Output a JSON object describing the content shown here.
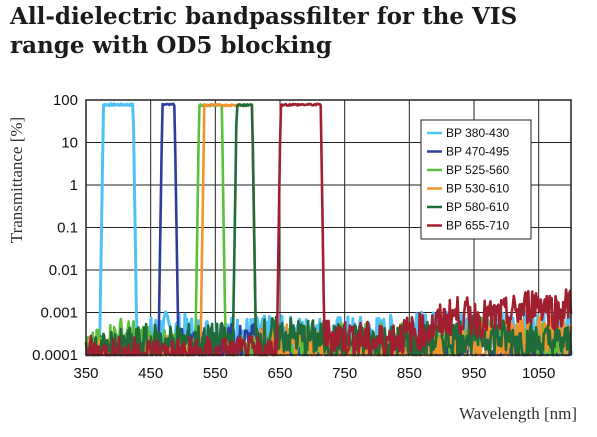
{
  "chart_data": {
    "type": "line",
    "title": "All-dielectric bandpassfilter for the VIS range with OD5 blocking",
    "xlabel": "Wavelength [nm]",
    "ylabel": "Transmittance [%]",
    "xlim": [
      350,
      1100
    ],
    "ylim": [
      0.0001,
      100
    ],
    "yscale": "log",
    "grid": true,
    "legend_position": "top-right",
    "x_ticks": [
      "350",
      "450",
      "550",
      "650",
      "750",
      "850",
      "950",
      "1050"
    ],
    "y_ticks": [
      "100",
      "10",
      "1",
      "0.1",
      "0.01",
      "0.001",
      "0.0001"
    ],
    "series": [
      {
        "name": "BP 380-430",
        "color": "#4fc3f7",
        "band": [
          372,
          428
        ],
        "peak": 80,
        "noise": [
          [
            350,
            0.0001
          ],
          [
            430,
            0.0002
          ],
          [
            470,
            0.0004
          ],
          [
            520,
            0.0003
          ],
          [
            600,
            0.0003
          ],
          [
            700,
            0.0003
          ],
          [
            800,
            0.0003
          ],
          [
            900,
            0.0004
          ],
          [
            1000,
            0.0004
          ],
          [
            1100,
            0.0004
          ]
        ]
      },
      {
        "name": "BP 470-495",
        "color": "#2e3d9c",
        "band": [
          463,
          492
        ],
        "peak": 80,
        "noise": [
          [
            350,
            0.0001
          ],
          [
            450,
            0.0001
          ],
          [
            500,
            0.00015
          ],
          [
            560,
            0.0002
          ],
          [
            620,
            0.0002
          ],
          [
            700,
            0.0001
          ],
          [
            800,
            0.0001
          ],
          [
            900,
            0.0001
          ],
          [
            1000,
            0.0001
          ],
          [
            1100,
            0.0001
          ]
        ]
      },
      {
        "name": "BP 525-560",
        "color": "#5cbf3c",
        "band": [
          520,
          565
        ],
        "peak": 78,
        "noise": [
          [
            350,
            0.0001
          ],
          [
            400,
            0.0003
          ],
          [
            440,
            0.0002
          ],
          [
            500,
            0.0001
          ],
          [
            600,
            0.0001
          ],
          [
            700,
            0.0002
          ],
          [
            800,
            0.0002
          ],
          [
            880,
            0.0002
          ],
          [
            950,
            0.0003
          ],
          [
            1050,
            0.0002
          ],
          [
            1100,
            0.0002
          ]
        ]
      },
      {
        "name": "BP 530-610",
        "color": "#f4922c",
        "band": [
          528,
          612
        ],
        "peak": 78,
        "noise": [
          [
            350,
            0.0001
          ],
          [
            430,
            0.0001
          ],
          [
            500,
            0.0001
          ],
          [
            620,
            0.0002
          ],
          [
            700,
            0.0002
          ],
          [
            760,
            0.0001
          ],
          [
            850,
            0.0001
          ],
          [
            950,
            0.0002
          ],
          [
            1050,
            0.0003
          ],
          [
            1100,
            0.0003
          ]
        ]
      },
      {
        "name": "BP 580-610",
        "color": "#1f6b3a",
        "band": [
          578,
          612
        ],
        "peak": 78,
        "noise": [
          [
            350,
            0.0001
          ],
          [
            450,
            0.0002
          ],
          [
            550,
            0.0002
          ],
          [
            650,
            0.0003
          ],
          [
            750,
            0.0002
          ],
          [
            850,
            0.0002
          ],
          [
            950,
            0.0003
          ],
          [
            1050,
            0.0002
          ],
          [
            1100,
            0.0002
          ]
        ]
      },
      {
        "name": "BP 655-710",
        "color": "#a02030",
        "band": [
          646,
          718
        ],
        "peak": 80,
        "noise": [
          [
            350,
            0.0001
          ],
          [
            600,
            0.0001
          ],
          [
            640,
            0.0001
          ],
          [
            730,
            0.0003
          ],
          [
            800,
            0.0002
          ],
          [
            880,
            0.0004
          ],
          [
            920,
            0.0009
          ],
          [
            960,
            0.0007
          ],
          [
            1000,
            0.0008
          ],
          [
            1050,
            0.0018
          ],
          [
            1080,
            0.001
          ],
          [
            1100,
            0.0017
          ]
        ]
      }
    ]
  }
}
